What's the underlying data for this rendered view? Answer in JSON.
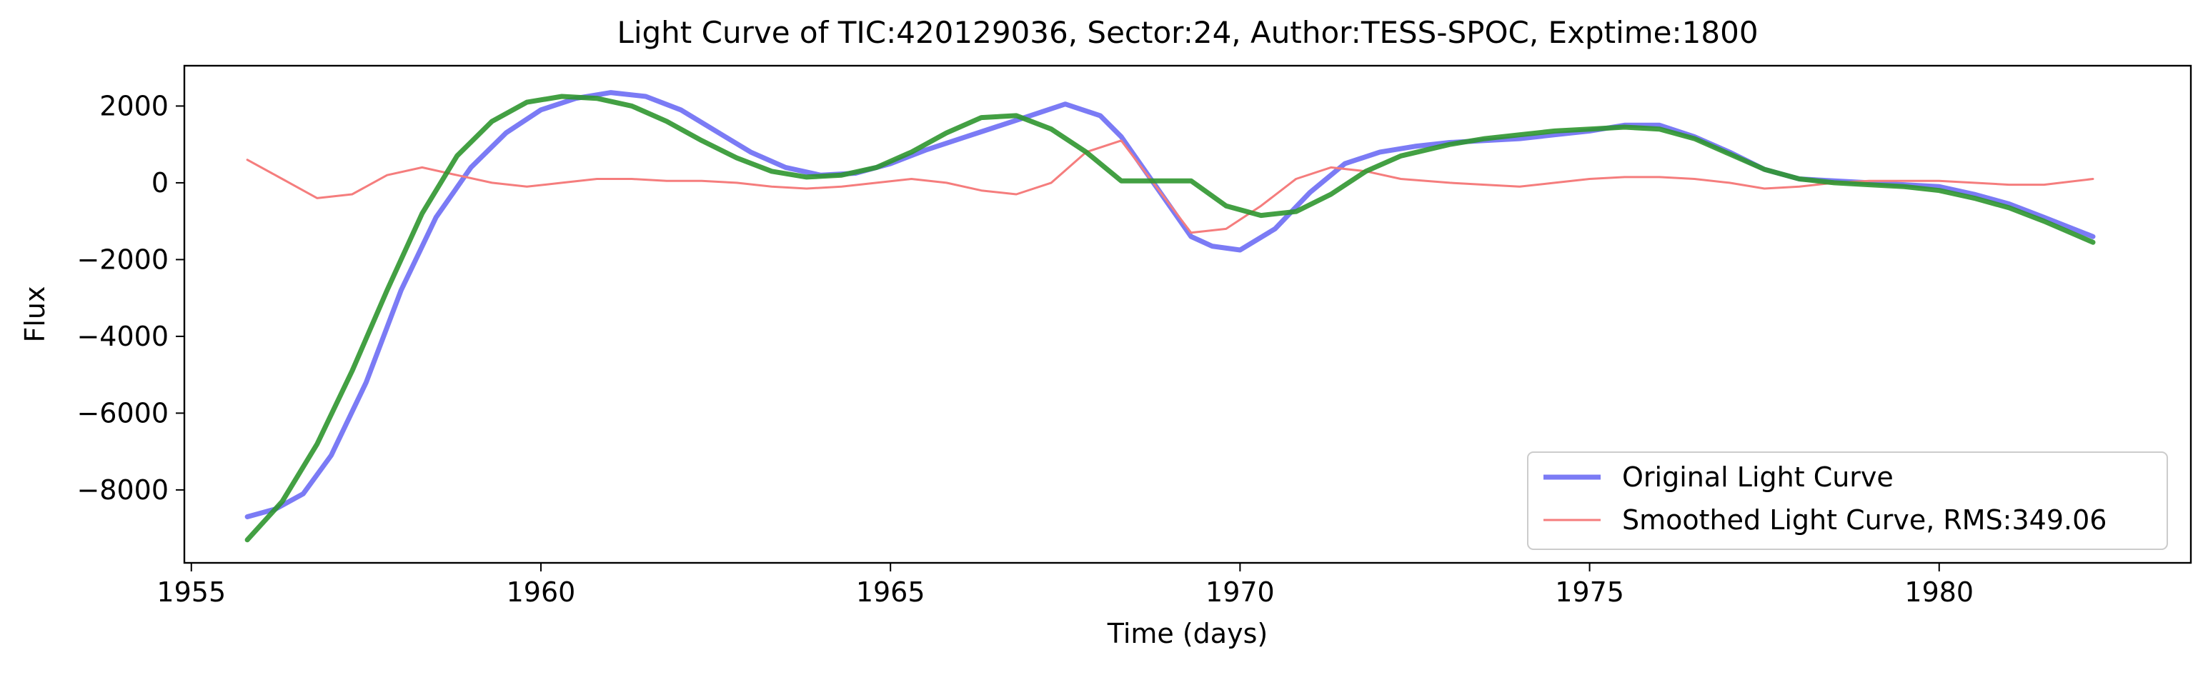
{
  "chart_data": {
    "type": "line",
    "title": "Light Curve of TIC:420129036, Sector:24, Author:TESS-SPOC, Exptime:1800",
    "xlabel": "Time (days)",
    "ylabel": "Flux",
    "xlim": [
      1954.9,
      1983.6
    ],
    "ylim": [
      -9900,
      3050
    ],
    "xticks": [
      1955,
      1960,
      1965,
      1970,
      1975,
      1980
    ],
    "yticks": [
      2000,
      0,
      -2000,
      -4000,
      -6000,
      -8000
    ],
    "xtick_labels": [
      "1955",
      "1960",
      "1965",
      "1970",
      "1975",
      "1980"
    ],
    "ytick_labels": [
      "2000",
      "0",
      "−2000",
      "−4000",
      "−6000",
      "−8000"
    ],
    "grid": false,
    "legend_position": "lower-right",
    "series": [
      {
        "name": "Original Light Curve",
        "color": "#7b7bf5",
        "style": "thick-solid",
        "x": [
          1955.8,
          1956.2,
          1956.6,
          1957.0,
          1957.5,
          1958.0,
          1958.5,
          1959.0,
          1959.5,
          1960.0,
          1960.5,
          1961.0,
          1961.5,
          1962.0,
          1962.5,
          1963.0,
          1963.5,
          1964.0,
          1964.5,
          1965.0,
          1965.5,
          1966.0,
          1966.5,
          1967.0,
          1967.5,
          1968.0,
          1968.3,
          1969.3,
          1969.6,
          1970.0,
          1970.5,
          1971.0,
          1971.5,
          1972.0,
          1972.5,
          1973.0,
          1973.5,
          1974.0,
          1974.5,
          1975.0,
          1975.5,
          1976.0,
          1976.5,
          1977.0,
          1977.5,
          1978.0,
          1978.5,
          1979.0,
          1979.5,
          1980.0,
          1980.5,
          1981.0,
          1981.5,
          1982.2
        ],
        "y": [
          -8700,
          -8500,
          -8100,
          -7100,
          -5200,
          -2800,
          -900,
          400,
          1300,
          1900,
          2200,
          2350,
          2250,
          1900,
          1350,
          800,
          400,
          200,
          250,
          500,
          850,
          1150,
          1450,
          1750,
          2050,
          1750,
          1200,
          -1400,
          -1650,
          -1750,
          -1200,
          -250,
          500,
          800,
          950,
          1050,
          1100,
          1150,
          1250,
          1350,
          1500,
          1500,
          1200,
          800,
          350,
          100,
          50,
          0,
          -50,
          -100,
          -300,
          -550,
          -900,
          -1400
        ]
      },
      {
        "name": "Smoothed Light Curve, RMS:349.06",
        "color": "#f57d7d",
        "style": "thin-solid",
        "x": [
          1955.8,
          1956.3,
          1956.8,
          1957.3,
          1957.8,
          1958.3,
          1958.8,
          1959.3,
          1959.8,
          1960.3,
          1960.8,
          1961.3,
          1961.8,
          1962.3,
          1962.8,
          1963.3,
          1963.8,
          1964.3,
          1964.8,
          1965.3,
          1965.8,
          1966.3,
          1966.8,
          1967.3,
          1967.8,
          1968.3,
          1969.3,
          1969.8,
          1970.3,
          1970.8,
          1971.3,
          1971.8,
          1972.3,
          1973.0,
          1973.5,
          1974.0,
          1974.5,
          1975.0,
          1975.5,
          1976.0,
          1976.5,
          1977.0,
          1977.5,
          1978.0,
          1978.5,
          1979.0,
          1979.5,
          1980.0,
          1980.5,
          1981.0,
          1981.5,
          1982.2
        ],
        "y": [
          600,
          100,
          -400,
          -300,
          200,
          400,
          200,
          0,
          -100,
          0,
          100,
          100,
          50,
          50,
          0,
          -100,
          -150,
          -100,
          0,
          100,
          0,
          -200,
          -300,
          0,
          800,
          1100,
          -1300,
          -1200,
          -600,
          100,
          400,
          300,
          100,
          0,
          -50,
          -100,
          0,
          100,
          150,
          150,
          100,
          0,
          -150,
          -100,
          0,
          50,
          50,
          50,
          0,
          -50,
          -50,
          100
        ]
      },
      {
        "name": "",
        "color": "#2f962f",
        "style": "thick-solid",
        "x": [
          1955.8,
          1956.3,
          1956.8,
          1957.3,
          1957.8,
          1958.3,
          1958.8,
          1959.3,
          1959.8,
          1960.3,
          1960.8,
          1961.3,
          1961.8,
          1962.3,
          1962.8,
          1963.3,
          1963.8,
          1964.3,
          1964.8,
          1965.3,
          1965.8,
          1966.3,
          1966.8,
          1967.3,
          1967.8,
          1968.3,
          1969.3,
          1969.8,
          1970.3,
          1970.8,
          1971.3,
          1971.8,
          1972.3,
          1973.0,
          1973.5,
          1974.0,
          1974.5,
          1975.0,
          1975.5,
          1976.0,
          1976.5,
          1977.0,
          1977.5,
          1978.0,
          1978.5,
          1979.0,
          1979.5,
          1980.0,
          1980.5,
          1981.0,
          1981.5,
          1982.2
        ],
        "y": [
          -9300,
          -8300,
          -6800,
          -4900,
          -2800,
          -800,
          700,
          1600,
          2100,
          2250,
          2200,
          2000,
          1600,
          1100,
          650,
          300,
          150,
          200,
          400,
          800,
          1300,
          1700,
          1750,
          1400,
          800,
          50,
          50,
          -600,
          -850,
          -750,
          -300,
          300,
          700,
          1000,
          1150,
          1250,
          1350,
          1400,
          1450,
          1400,
          1150,
          750,
          350,
          100,
          0,
          -50,
          -100,
          -200,
          -400,
          -650,
          -1000,
          -1550
        ]
      }
    ]
  }
}
